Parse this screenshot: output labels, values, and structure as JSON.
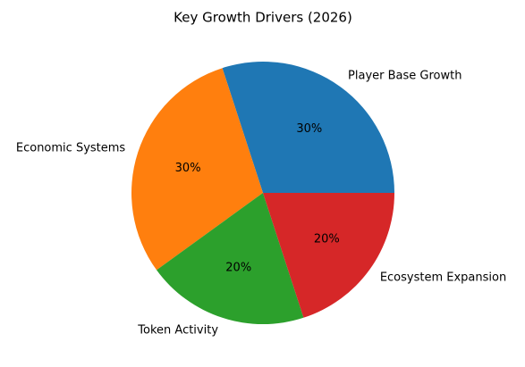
{
  "chart_data": {
    "type": "pie",
    "title": "Key Growth Drivers (2026)",
    "categories": [
      "Player Base Growth",
      "Economic Systems",
      "Token Activity",
      "Ecosystem Expansion"
    ],
    "values": [
      30,
      30,
      20,
      20
    ],
    "value_labels": [
      "30%",
      "30%",
      "20%",
      "20%"
    ],
    "colors": [
      "#1f77b4",
      "#ff7f0e",
      "#2ca02c",
      "#d62728"
    ]
  }
}
